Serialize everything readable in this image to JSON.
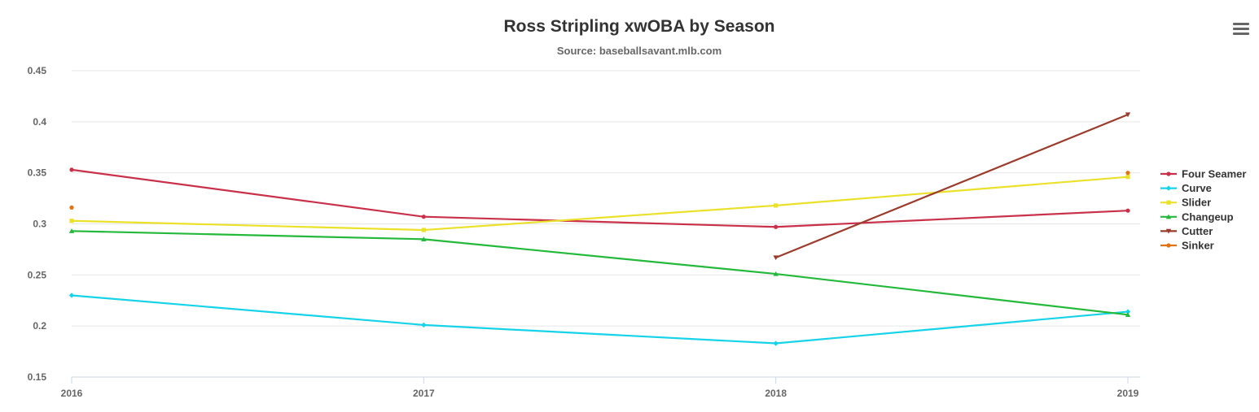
{
  "chart_data": {
    "type": "line",
    "title": "Ross Stripling xwOBA by Season",
    "subtitle": "Source: baseballsavant.mlb.com",
    "xlabel": "",
    "ylabel": "",
    "x": [
      "2016",
      "2017",
      "2018",
      "2019"
    ],
    "ylim": [
      0.15,
      0.45
    ],
    "yticks": [
      "0.15",
      "0.2",
      "0.25",
      "0.3",
      "0.35",
      "0.4",
      "0.45"
    ],
    "grid": true,
    "legend_position": "right",
    "series": [
      {
        "name": "Four Seamer",
        "color": "#c9314a",
        "marker": "circle",
        "values": [
          0.353,
          0.307,
          0.297,
          0.313
        ]
      },
      {
        "name": "Curve",
        "color": "#16d3e8",
        "marker": "diamond",
        "values": [
          0.23,
          0.201,
          0.183,
          0.214
        ]
      },
      {
        "name": "Slider",
        "color": "#ebe12a",
        "marker": "square",
        "values": [
          0.303,
          0.294,
          0.318,
          0.346
        ]
      },
      {
        "name": "Changeup",
        "color": "#25b93b",
        "marker": "triangle",
        "values": [
          0.293,
          0.285,
          0.251,
          0.211
        ]
      },
      {
        "name": "Cutter",
        "color": "#993c2c",
        "marker": "triangle-down",
        "values": [
          null,
          null,
          0.267,
          0.407
        ]
      },
      {
        "name": "Sinker",
        "color": "#e0730f",
        "marker": "circle",
        "values": [
          0.316,
          null,
          null,
          0.35
        ]
      }
    ]
  },
  "menu": {
    "icon": "hamburger-menu-icon"
  }
}
